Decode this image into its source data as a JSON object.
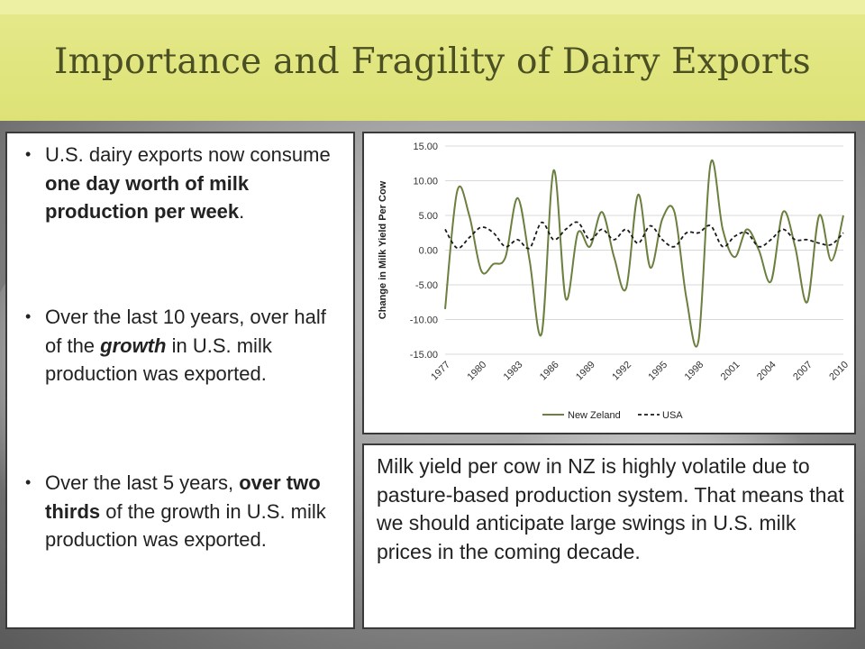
{
  "slide": {
    "title": "Importance and Fragility of Dairy Exports"
  },
  "bullets": [
    {
      "parts": [
        {
          "text": "U.S. dairy exports now consume ",
          "style": "normal"
        },
        {
          "text": "one day worth of milk production per week",
          "style": "bold"
        },
        {
          "text": ".",
          "style": "normal"
        }
      ]
    },
    {
      "parts": [
        {
          "text": "Over the last 10 years, over half of the ",
          "style": "normal"
        },
        {
          "text": "growth",
          "style": "bold-italic"
        },
        {
          "text": " in U.S. milk production was exported.",
          "style": "normal"
        }
      ]
    },
    {
      "parts": [
        {
          "text": "Over the last 5 years, ",
          "style": "normal"
        },
        {
          "text": "over two thirds",
          "style": "bold"
        },
        {
          "text": " of the growth in U.S. milk production was exported.",
          "style": "normal"
        }
      ]
    }
  ],
  "note": {
    "text": "Milk yield per cow in NZ is highly volatile due to pasture-based production system. That means that we should anticipate large swings in U.S. milk prices in the coming decade."
  },
  "chart_data": {
    "type": "line",
    "title": "",
    "xlabel": "",
    "ylabel": "Change in Milk Yield Per Cow",
    "ylim": [
      -15,
      15
    ],
    "yticks": [
      15,
      10,
      5,
      0,
      -5,
      -10,
      -15
    ],
    "ytick_labels": [
      "15.00",
      "10.00",
      "5.00",
      "0.00",
      "-5.00",
      "-10.00",
      "-15.00"
    ],
    "xlim": [
      1977,
      2010
    ],
    "xtick_labels": [
      "1977",
      "1980",
      "1983",
      "1986",
      "1989",
      "1992",
      "1995",
      "1998",
      "2001",
      "2004",
      "2007",
      "2010"
    ],
    "grid": "horizontal",
    "legend_position": "bottom",
    "series": [
      {
        "name": "New Zeland",
        "color": "#6b7f3e",
        "style": "solid",
        "x": [
          1977,
          1978,
          1979,
          1980,
          1981,
          1982,
          1983,
          1984,
          1985,
          1986,
          1987,
          1988,
          1989,
          1990,
          1991,
          1992,
          1993,
          1994,
          1995,
          1996,
          1997,
          1998,
          1999,
          2000,
          2001,
          2002,
          2003,
          2004,
          2005,
          2006,
          2007,
          2008,
          2009,
          2010
        ],
        "y": [
          -8.5,
          8.5,
          5.0,
          -3.0,
          -2.0,
          -1.0,
          7.5,
          -1.5,
          -12.0,
          11.5,
          -7.0,
          2.5,
          0.5,
          5.5,
          -1.0,
          -5.5,
          8.0,
          -2.5,
          4.5,
          5.5,
          -7.0,
          -13.0,
          12.5,
          3.0,
          -1.0,
          3.0,
          0.0,
          -4.5,
          5.5,
          0.5,
          -7.5,
          5.0,
          -1.5,
          5.0
        ]
      },
      {
        "name": "USA",
        "color": "#1a1a1a",
        "style": "dashed",
        "x": [
          1977,
          1978,
          1979,
          1980,
          1981,
          1982,
          1983,
          1984,
          1985,
          1986,
          1987,
          1988,
          1989,
          1990,
          1991,
          1992,
          1993,
          1994,
          1995,
          1996,
          1997,
          1998,
          1999,
          2000,
          2001,
          2002,
          2003,
          2004,
          2005,
          2006,
          2007,
          2008,
          2009,
          2010
        ],
        "y": [
          3.0,
          0.3,
          1.8,
          3.3,
          2.5,
          0.5,
          1.5,
          0.3,
          4.0,
          1.5,
          3.0,
          4.0,
          1.5,
          3.0,
          1.5,
          3.0,
          1.0,
          3.5,
          1.5,
          0.5,
          2.5,
          2.5,
          3.5,
          0.5,
          2.0,
          2.5,
          0.5,
          1.5,
          3.0,
          1.5,
          1.5,
          1.0,
          0.8,
          2.5
        ]
      }
    ]
  }
}
